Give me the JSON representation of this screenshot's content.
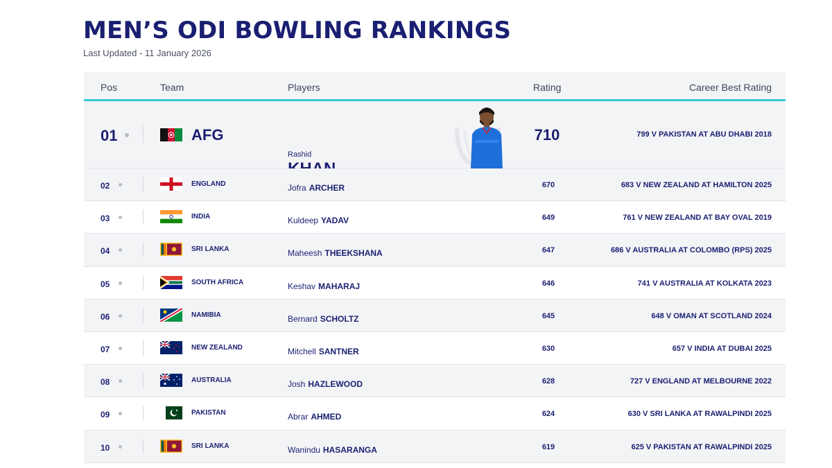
{
  "header": {
    "title": "MEN’S ODI BOWLING RANKINGS",
    "last_updated": "Last Updated - 11 January 2026"
  },
  "columns": {
    "pos": "Pos",
    "team": "Team",
    "players": "Players",
    "rating": "Rating",
    "career_best": "Career Best Rating"
  },
  "top": {
    "pos": "01",
    "team": "AFG",
    "flag": "afghanistan-flag",
    "first_name": "Rashid",
    "last_name": "KHAN",
    "rating": "710",
    "career_best": "799 V PAKISTAN AT ABU DHABI 2018"
  },
  "rows": [
    {
      "pos": "02",
      "team": "ENGLAND",
      "flag": "england-flag",
      "first": "Jofra",
      "last": "ARCHER",
      "rating": "670",
      "best": "683 V NEW ZEALAND AT HAMILTON 2025"
    },
    {
      "pos": "03",
      "team": "INDIA",
      "flag": "india-flag",
      "first": "Kuldeep",
      "last": "YADAV",
      "rating": "649",
      "best": "761 V NEW ZEALAND AT BAY OVAL 2019"
    },
    {
      "pos": "04",
      "team": "SRI LANKA",
      "flag": "sri-lanka-flag",
      "first": "Maheesh",
      "last": "THEEKSHANA",
      "rating": "647",
      "best": "686 V AUSTRALIA AT COLOMBO (RPS) 2025"
    },
    {
      "pos": "05",
      "team": "SOUTH AFRICA",
      "flag": "south-africa-flag",
      "first": "Keshav",
      "last": "MAHARAJ",
      "rating": "646",
      "best": "741 V AUSTRALIA AT KOLKATA 2023"
    },
    {
      "pos": "06",
      "team": "NAMIBIA",
      "flag": "namibia-flag",
      "first": "Bernard",
      "last": "SCHOLTZ",
      "rating": "645",
      "best": "648 V OMAN AT SCOTLAND 2024"
    },
    {
      "pos": "07",
      "team": "NEW ZEALAND",
      "flag": "new-zealand-flag",
      "first": "Mitchell",
      "last": "SANTNER",
      "rating": "630",
      "best": "657 V INDIA AT DUBAI 2025"
    },
    {
      "pos": "08",
      "team": "AUSTRALIA",
      "flag": "australia-flag",
      "first": "Josh",
      "last": "HAZLEWOOD",
      "rating": "628",
      "best": "727 V ENGLAND AT MELBOURNE 2022"
    },
    {
      "pos": "09",
      "team": "PAKISTAN",
      "flag": "pakistan-flag",
      "first": "Abrar",
      "last": "AHMED",
      "rating": "624",
      "best": "630 V SRI LANKA AT RAWALPINDI 2025"
    },
    {
      "pos": "10",
      "team": "SRI LANKA",
      "flag": "sri-lanka-flag",
      "first": "Wanindu",
      "last": "HASARANGA",
      "rating": "619",
      "best": "625 V PAKISTAN AT RAWALPINDI 2025"
    }
  ],
  "colors": {
    "navy": "#1a1f71",
    "accent": "#35cdd6",
    "row_alt": "#f3f4f6"
  }
}
